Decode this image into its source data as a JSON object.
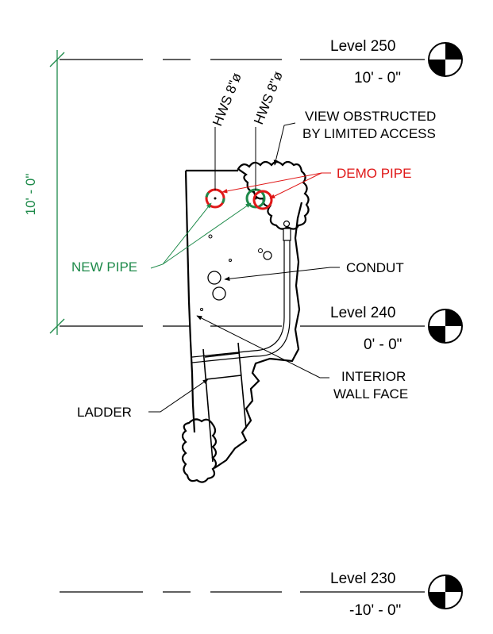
{
  "levels": [
    {
      "name": "Level 250",
      "elevation": "10' - 0\""
    },
    {
      "name": "Level 240",
      "elevation": "0' - 0\""
    },
    {
      "name": "Level 230",
      "elevation": "-10' - 0\""
    }
  ],
  "dimension": {
    "text": "10' - 0\"",
    "color": "#1e8a4a"
  },
  "pipe_tags": [
    {
      "text": "HWS 8\"ø"
    },
    {
      "text": "HWS 8\"ø"
    }
  ],
  "notes": {
    "view_obstructed": [
      "VIEW OBSTRUCTED",
      "BY LIMITED ACCESS"
    ],
    "demo_pipe": "DEMO PIPE",
    "new_pipe": "NEW PIPE",
    "conduit": "CONDUT",
    "interior_wall": [
      "INTERIOR",
      "WALL FACE"
    ],
    "ladder": "LADDER"
  },
  "colors": {
    "demo": "#e01818",
    "new": "#1e8a4a",
    "line": "#000000"
  }
}
